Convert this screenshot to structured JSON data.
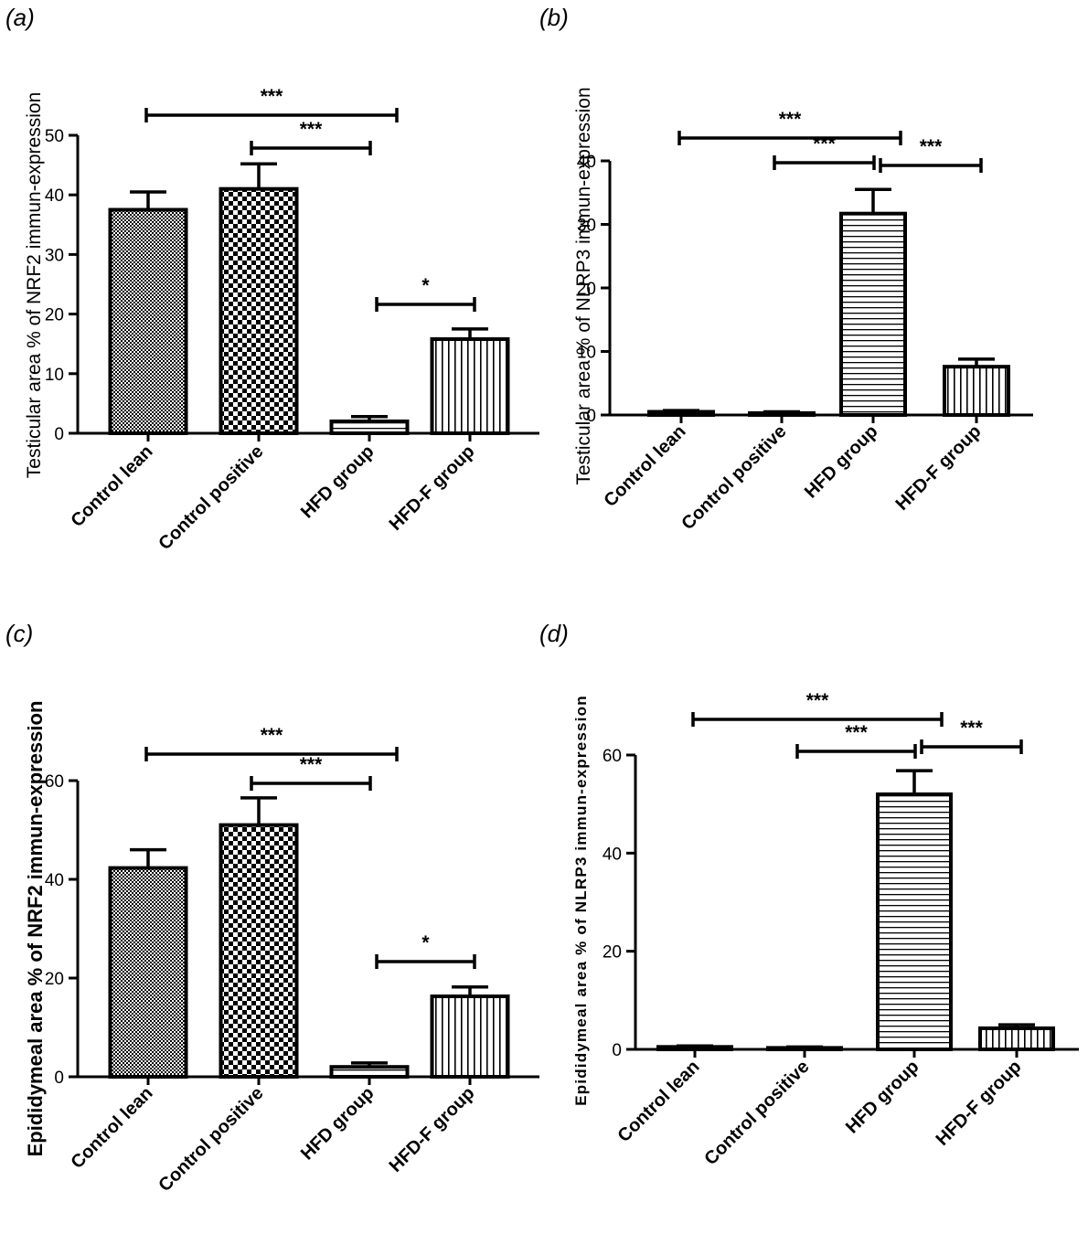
{
  "chart_data": [
    {
      "type": "bar",
      "panel_label": "(a)",
      "ylabel": "Testicular area % of NRF2 immun-expression",
      "categories": [
        "Control lean",
        "Control positive",
        "HFD group",
        "HFD-F group"
      ],
      "values": [
        37.5,
        41.0,
        2.0,
        15.8
      ],
      "errors": [
        3.0,
        4.2,
        0.8,
        1.7
      ],
      "ylim": [
        0,
        50
      ],
      "yticks": [
        0,
        10,
        20,
        30,
        40,
        50
      ],
      "significance": [
        {
          "from": 0,
          "to": 2,
          "label": "***"
        },
        {
          "from": 1,
          "to": 2,
          "label": "***"
        },
        {
          "from": 2,
          "to": 3,
          "label": "*"
        }
      ]
    },
    {
      "type": "bar",
      "panel_label": "(b)",
      "ylabel": "Testicular area % of NLRP3 immun-expression",
      "categories": [
        "Control lean",
        "Control positive",
        "HFD group",
        "HFD-F group"
      ],
      "values": [
        0.5,
        0.3,
        31.7,
        7.6
      ],
      "errors": [
        0.2,
        0.2,
        3.8,
        1.2
      ],
      "ylim": [
        0,
        40
      ],
      "yticks": [
        0,
        10,
        20,
        30,
        40
      ],
      "significance": [
        {
          "from": 0,
          "to": 2,
          "label": "***"
        },
        {
          "from": 1,
          "to": 2,
          "label": "***"
        },
        {
          "from": 2,
          "to": 3,
          "label": "***"
        }
      ]
    },
    {
      "type": "bar",
      "panel_label": "(c)",
      "ylabel": "Epididymeal area % of NRF2 immun-expression",
      "categories": [
        "Control lean",
        "Control positive",
        "HFD group",
        "HFD-F group"
      ],
      "values": [
        42.3,
        51.0,
        2.0,
        16.3
      ],
      "errors": [
        3.7,
        5.5,
        0.8,
        1.9
      ],
      "ylim": [
        0,
        60
      ],
      "yticks": [
        0,
        20,
        40,
        60
      ],
      "significance": [
        {
          "from": 0,
          "to": 2,
          "label": "***"
        },
        {
          "from": 1,
          "to": 2,
          "label": "***"
        },
        {
          "from": 2,
          "to": 3,
          "label": "*"
        }
      ]
    },
    {
      "type": "bar",
      "panel_label": "(d)",
      "ylabel": "Epididymeal area % of NLRP3 immun-expression",
      "categories": [
        "Control lean",
        "Control positive",
        "HFD group",
        "HFD-F group"
      ],
      "values": [
        0.5,
        0.3,
        52.0,
        4.3
      ],
      "errors": [
        0.2,
        0.2,
        4.8,
        0.7
      ],
      "ylim": [
        0,
        60
      ],
      "yticks": [
        0,
        20,
        40,
        60
      ],
      "significance": [
        {
          "from": 0,
          "to": 2,
          "label": "***"
        },
        {
          "from": 1,
          "to": 2,
          "label": "***"
        },
        {
          "from": 2,
          "to": 3,
          "label": "***"
        }
      ]
    }
  ]
}
